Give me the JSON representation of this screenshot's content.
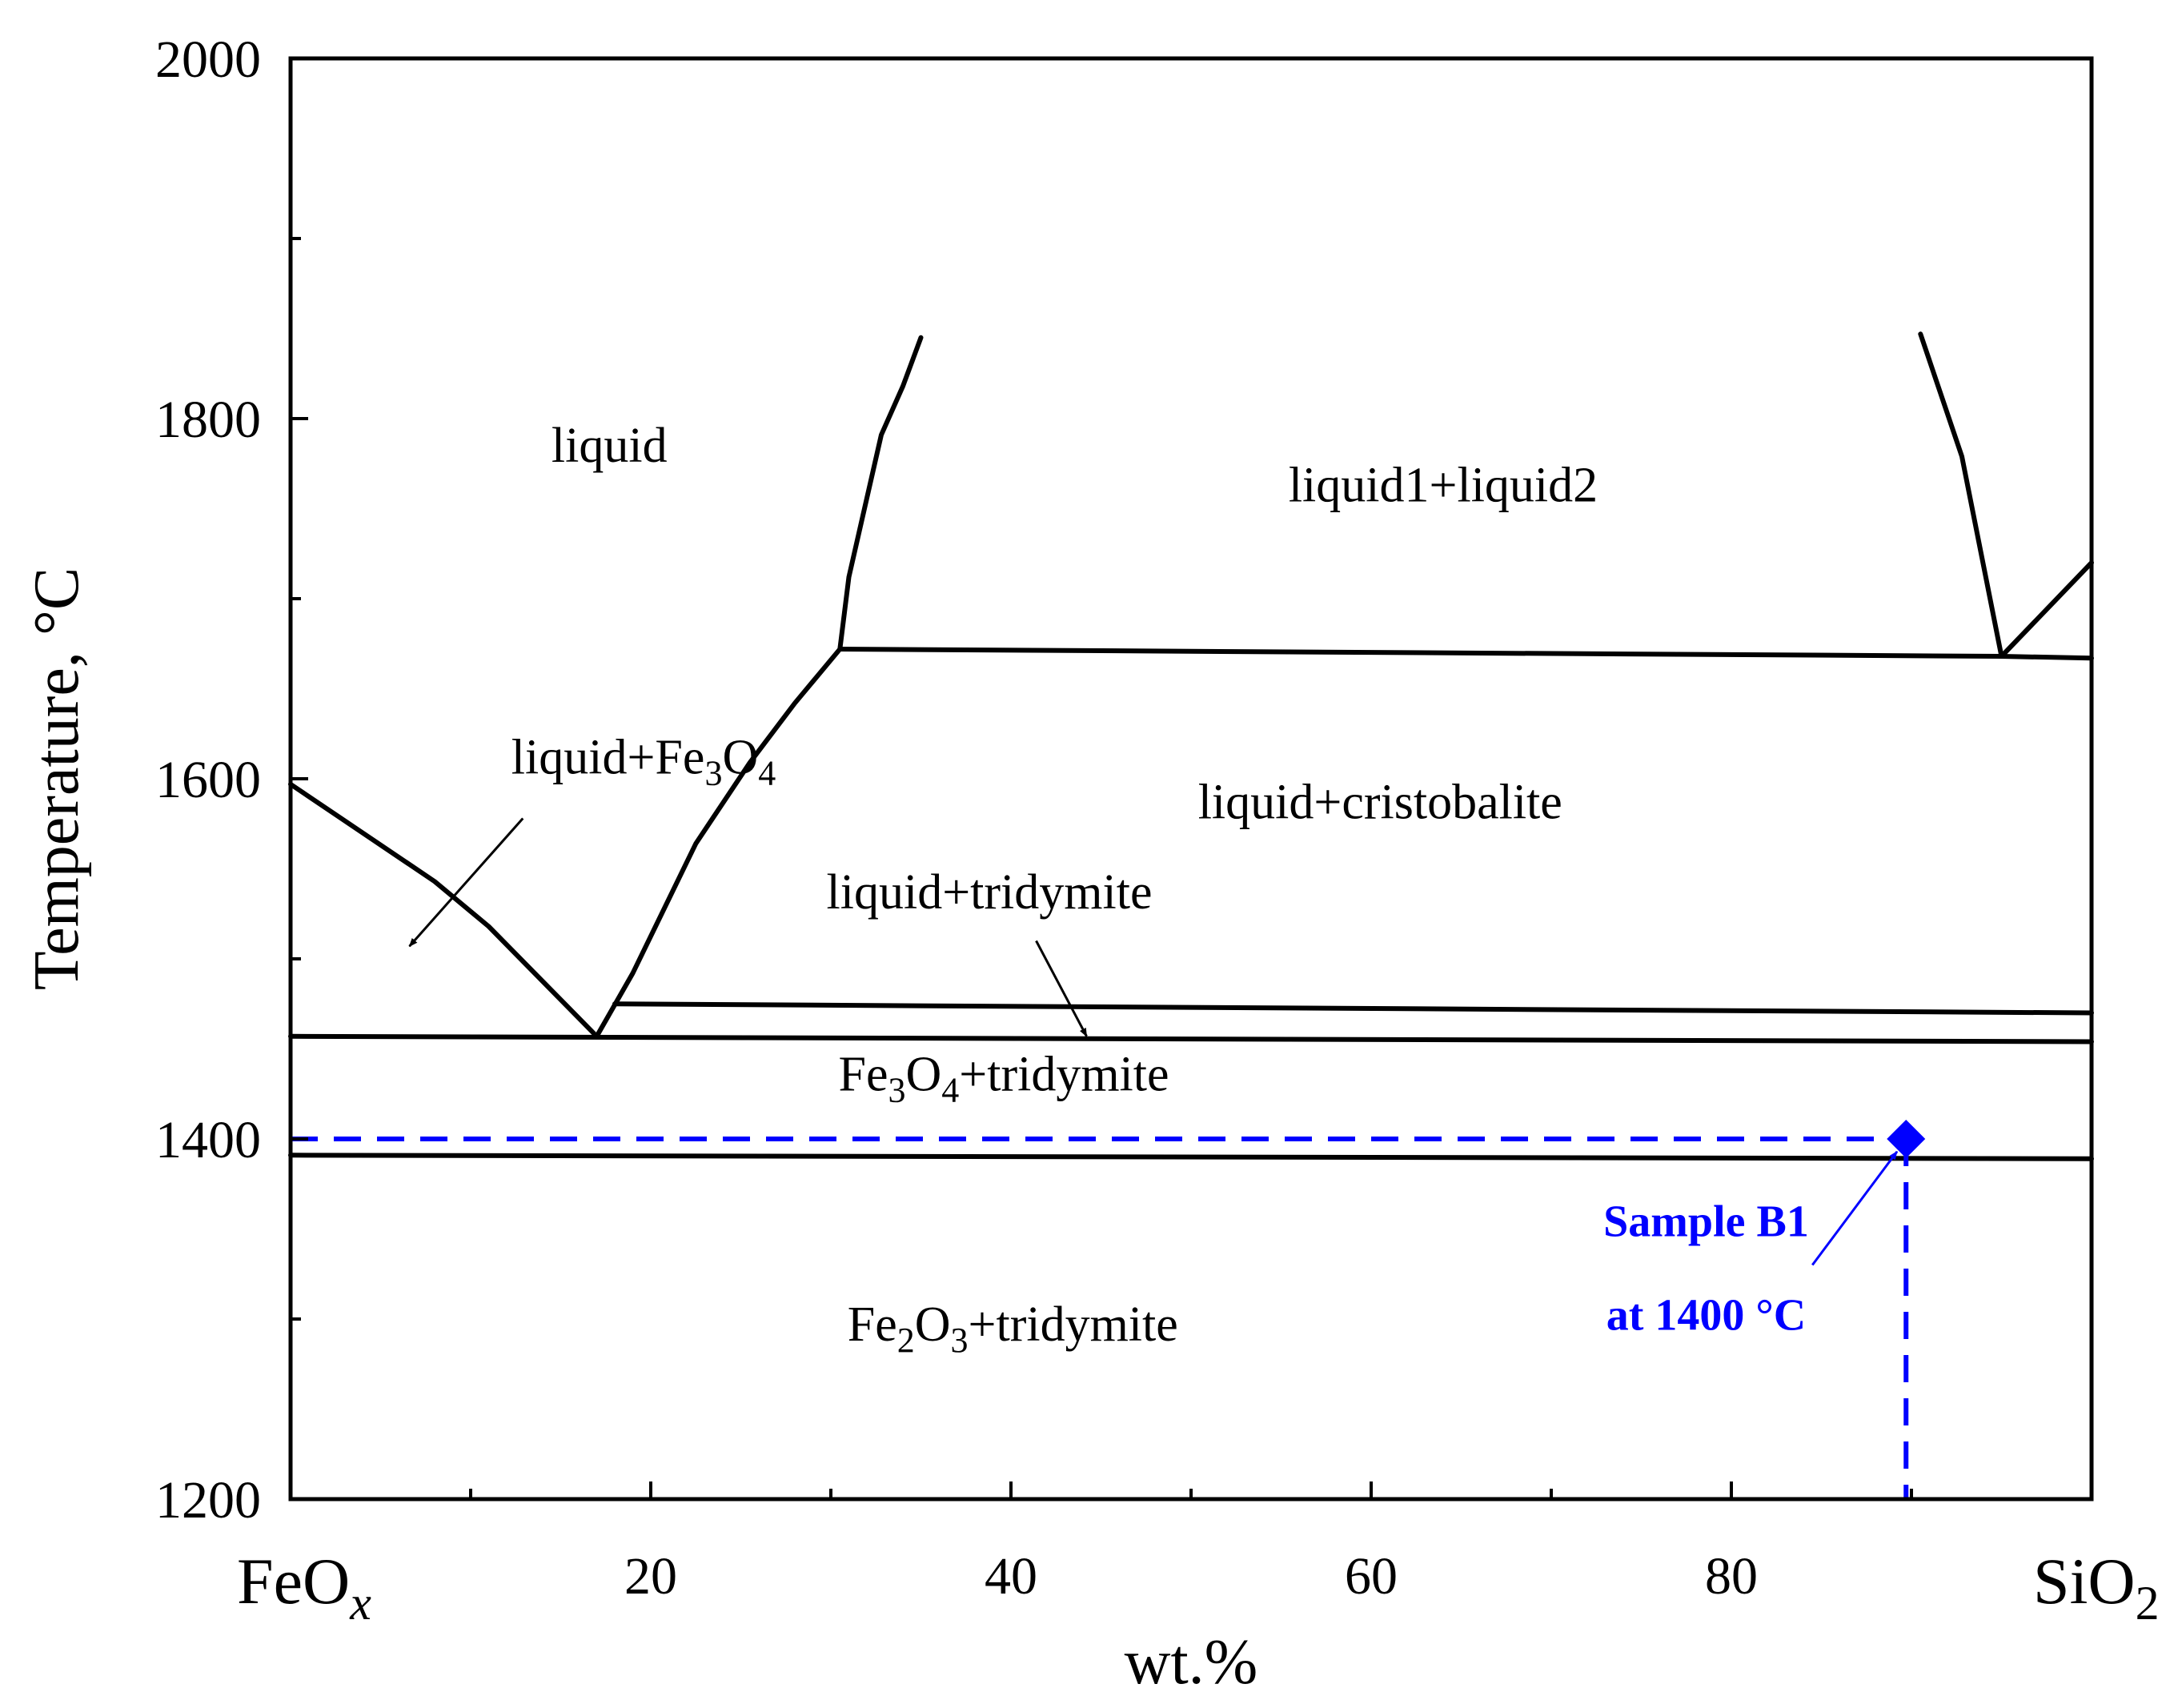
{
  "chart_data": {
    "type": "line",
    "xlabel": "wt.%",
    "ylabel": "Temperature, °C",
    "xlim": [
      0,
      100
    ],
    "ylim": [
      1200,
      2000
    ],
    "x_ticks": [
      20,
      40,
      60,
      80
    ],
    "x_minor_ticks": [
      10,
      30,
      50,
      70,
      90
    ],
    "y_ticks": [
      1400,
      1600,
      1800,
      2000
    ],
    "y_tick_labels": [
      "1200",
      "1400",
      "1600",
      "1800",
      "2000"
    ],
    "y_minor_ticks": [
      1300,
      1500,
      1700,
      1900
    ],
    "x_end_labels": {
      "left": {
        "base": "FeO",
        "sub": "x"
      },
      "right": {
        "base": "SiO",
        "sub": "2"
      }
    },
    "phase_boundaries": [
      {
        "x": [
          0,
          8,
          11,
          17
        ],
        "y": [
          1597,
          1543,
          1518,
          1457
        ]
      },
      {
        "x": [
          17,
          19,
          22.5,
          25.5,
          28,
          30.5
        ],
        "y": [
          1457,
          1492,
          1564,
          1609,
          1642,
          1672
        ]
      },
      {
        "x": [
          30.5,
          31,
          32.8,
          34,
          35
        ],
        "y": [
          1672,
          1712,
          1791,
          1818,
          1845
        ]
      },
      {
        "x": [
          30.5,
          95,
          100
        ],
        "y": [
          1672,
          1668,
          1667
        ]
      },
      {
        "x": [
          90.5,
          92.8,
          95
        ],
        "y": [
          1847,
          1779,
          1668
        ]
      },
      {
        "x": [
          95,
          100
        ],
        "y": [
          1668,
          1720
        ]
      },
      {
        "x": [
          18,
          100
        ],
        "y": [
          1475,
          1470
        ]
      },
      {
        "x": [
          0,
          100
        ],
        "y": [
          1457,
          1454
        ]
      },
      {
        "x": [
          0,
          100
        ],
        "y": [
          1391,
          1389
        ]
      }
    ],
    "regions": [
      {
        "text": "liquid",
        "x": 17.7,
        "y": 1776
      },
      {
        "text": "liquid1+liquid2",
        "x": 64.0,
        "y": 1754
      },
      {
        "text": "liquid+cristobalite",
        "x": 60.5,
        "y": 1578
      },
      {
        "text": "liquid+tridymite",
        "x": 38.8,
        "y": 1528
      },
      {
        "text": "liquid+Fe3O4",
        "x": 19.6,
        "y": 1603,
        "parts": [
          [
            "liquid+Fe",
            "n"
          ],
          [
            "3",
            "sub"
          ],
          [
            "O",
            "n"
          ],
          [
            "4",
            "sub"
          ]
        ]
      },
      {
        "text": "Fe3O4+tridymite",
        "x": 39.6,
        "y": 1427,
        "parts": [
          [
            "Fe",
            "n"
          ],
          [
            "3",
            "sub"
          ],
          [
            "O",
            "n"
          ],
          [
            "4",
            "sub"
          ],
          [
            "+tridymite",
            "n"
          ]
        ]
      },
      {
        "text": "Fe2O3+tridymite",
        "x": 40.1,
        "y": 1288,
        "parts": [
          [
            "Fe",
            "n"
          ],
          [
            "2",
            "sub"
          ],
          [
            "O",
            "n"
          ],
          [
            "3",
            "sub"
          ],
          [
            "+tridymite",
            "n"
          ]
        ]
      }
    ],
    "arrows": [
      {
        "from": [
          12.9,
          1578
        ],
        "to": [
          6.6,
          1507
        ]
      },
      {
        "from": [
          41.4,
          1510
        ],
        "to": [
          44.2,
          1457
        ]
      }
    ],
    "sample": {
      "x": 89.7,
      "y": 1400,
      "label_line1": "Sample B1",
      "label_line2": "at 1400 °C",
      "label_anchor": [
        78.6,
        1346
      ],
      "arrow_from": [
        84.5,
        1330
      ],
      "arrow_to": [
        89.2,
        1393
      ],
      "color": "#0000ff"
    },
    "grid": false,
    "line_color": "#000000"
  }
}
